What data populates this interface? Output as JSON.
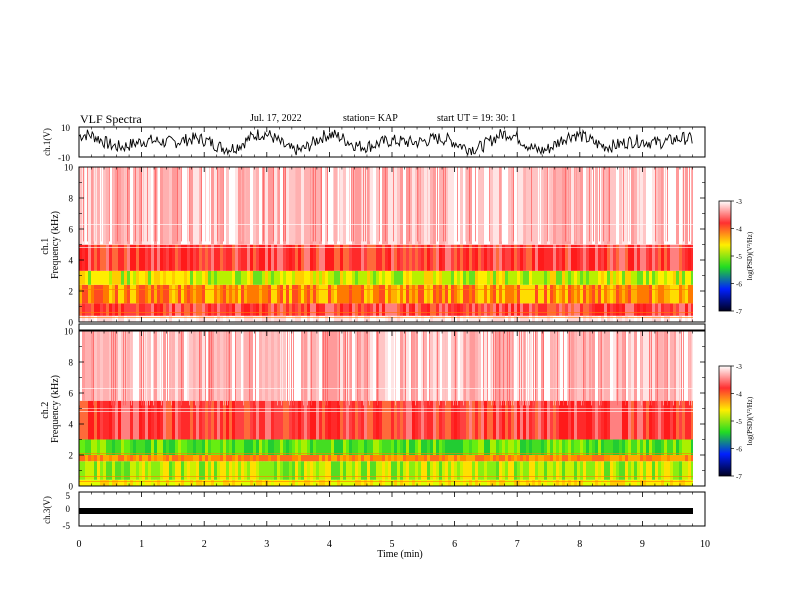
{
  "header": {
    "title": "VLF Spectra",
    "date": "Jul. 17, 2022",
    "station": "station= KAP",
    "start": "start  UT =   19: 30: 1"
  },
  "colorbar": {
    "label": "log(PSD)(V²/Hz)",
    "ticks": [
      "-3",
      "-4",
      "-5",
      "-6",
      "-7"
    ],
    "colors": [
      "#ffffff",
      "#ff2020",
      "#ffff00",
      "#22dd22",
      "#0000ff",
      "#000030"
    ]
  },
  "chart_data": [
    {
      "type": "line",
      "panel": "ch1-waveform",
      "ylabel": "ch.1(V)",
      "yticks": [
        "10",
        "-10"
      ],
      "ylim": [
        -10,
        10
      ],
      "xlim": [
        0,
        10
      ],
      "note_values": "dense oscillating waveform roughly between -8 and +8 V"
    },
    {
      "type": "heatmap",
      "panel": "ch1-spectrogram",
      "ylabel": "ch.1\nFrequency (kHz)",
      "yticks": [
        "10",
        "8",
        "6",
        "4",
        "2",
        "0"
      ],
      "ylim": [
        0,
        10
      ],
      "xlim": [
        0,
        10
      ],
      "bands": [
        {
          "from": 0.0,
          "to": 0.4,
          "level": "white"
        },
        {
          "from": 0.4,
          "to": 1.2,
          "level": "red"
        },
        {
          "from": 1.2,
          "to": 2.4,
          "level": "orange-yellow"
        },
        {
          "from": 2.4,
          "to": 3.3,
          "level": "yellow-green"
        },
        {
          "from": 3.3,
          "to": 5.0,
          "level": "red"
        },
        {
          "from": 5.0,
          "to": 10.0,
          "level": "pink-white"
        }
      ]
    },
    {
      "type": "heatmap",
      "panel": "ch2-spectrogram",
      "ylabel": "ch.2\nFrequency (kHz)",
      "yticks": [
        "10",
        "8",
        "6",
        "4",
        "2",
        "0"
      ],
      "ylim": [
        0,
        10
      ],
      "xlim": [
        0,
        10
      ],
      "bands": [
        {
          "from": 0.0,
          "to": 0.4,
          "level": "yellow"
        },
        {
          "from": 0.4,
          "to": 1.6,
          "level": "green-yellow"
        },
        {
          "from": 1.6,
          "to": 2.0,
          "level": "orange"
        },
        {
          "from": 2.0,
          "to": 3.0,
          "level": "green"
        },
        {
          "from": 3.0,
          "to": 5.5,
          "level": "red"
        },
        {
          "from": 5.5,
          "to": 10.0,
          "level": "pink-white"
        }
      ]
    },
    {
      "type": "line",
      "panel": "ch3-waveform",
      "ylabel": "ch.3(V)",
      "yticks": [
        "5",
        "0",
        "-5"
      ],
      "ylim": [
        -5,
        5
      ],
      "xlim": [
        0,
        10
      ],
      "note_values": "thick near-constant trace around -0.5 V"
    }
  ],
  "xaxis": {
    "label": "Time (min)",
    "ticks": [
      "0",
      "1",
      "2",
      "3",
      "4",
      "5",
      "6",
      "7",
      "8",
      "9",
      "10"
    ]
  }
}
